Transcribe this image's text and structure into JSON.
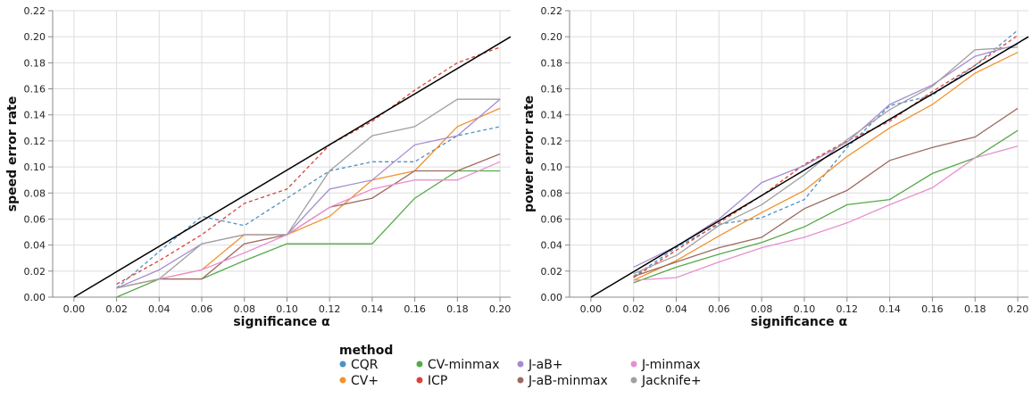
{
  "chart_data": [
    {
      "type": "line",
      "xlabel": "significance α",
      "ylabel": "speed error rate",
      "xlim": [
        -0.01,
        0.205
      ],
      "ylim": [
        0,
        0.22
      ],
      "xticks": [
        "0.00",
        "0.02",
        "0.04",
        "0.06",
        "0.08",
        "0.10",
        "0.12",
        "0.14",
        "0.16",
        "0.18",
        "0.20"
      ],
      "yticks": [
        "0.00",
        "0.02",
        "0.04",
        "0.06",
        "0.08",
        "0.10",
        "0.12",
        "0.14",
        "0.16",
        "0.18",
        "0.20",
        "0.22"
      ],
      "grid": true,
      "x": [
        0.02,
        0.04,
        0.06,
        0.08,
        0.1,
        0.12,
        0.14,
        0.16,
        0.18,
        0.2
      ],
      "reference_line": {
        "from": [
          0,
          0
        ],
        "to": [
          0.205,
          0.2
        ],
        "color": "#000000"
      },
      "series": [
        {
          "name": "CQR",
          "values": [
            0.007,
            0.035,
            0.062,
            0.055,
            0.076,
            0.097,
            0.104,
            0.104,
            0.124,
            0.131
          ]
        },
        {
          "name": "CV+",
          "values": [
            0.007,
            0.014,
            0.021,
            0.048,
            0.048,
            0.062,
            0.09,
            0.097,
            0.131,
            0.145
          ]
        },
        {
          "name": "CV-minmax",
          "values": [
            0.0,
            0.014,
            0.014,
            0.028,
            0.041,
            0.041,
            0.041,
            0.076,
            0.097,
            0.097
          ]
        },
        {
          "name": "ICP",
          "values": [
            0.01,
            0.028,
            0.048,
            0.072,
            0.083,
            0.117,
            0.135,
            0.159,
            0.18,
            0.192
          ]
        },
        {
          "name": "J-aB+",
          "values": [
            0.007,
            0.021,
            0.041,
            0.048,
            0.048,
            0.083,
            0.09,
            0.117,
            0.124,
            0.152
          ]
        },
        {
          "name": "J-aB-minmax",
          "values": [
            0.007,
            0.014,
            0.014,
            0.041,
            0.048,
            0.069,
            0.076,
            0.097,
            0.097,
            0.11
          ]
        },
        {
          "name": "J-minmax",
          "values": [
            0.007,
            0.014,
            0.021,
            0.034,
            0.048,
            0.069,
            0.083,
            0.09,
            0.09,
            0.104
          ]
        },
        {
          "name": "Jacknife+",
          "values": [
            0.007,
            0.014,
            0.041,
            0.048,
            0.048,
            0.097,
            0.124,
            0.131,
            0.152,
            0.152
          ]
        }
      ]
    },
    {
      "type": "line",
      "xlabel": "significance α",
      "ylabel": "power error rate",
      "xlim": [
        -0.01,
        0.205
      ],
      "ylim": [
        0,
        0.22
      ],
      "xticks": [
        "0.00",
        "0.02",
        "0.04",
        "0.06",
        "0.08",
        "0.10",
        "0.12",
        "0.14",
        "0.16",
        "0.18",
        "0.20"
      ],
      "yticks": [
        "0.00",
        "0.02",
        "0.04",
        "0.06",
        "0.08",
        "0.10",
        "0.12",
        "0.14",
        "0.16",
        "0.18",
        "0.20",
        "0.22"
      ],
      "grid": true,
      "x": [
        0.02,
        0.04,
        0.06,
        0.08,
        0.1,
        0.12,
        0.14,
        0.16,
        0.18,
        0.2
      ],
      "reference_line": {
        "from": [
          0,
          0
        ],
        "to": [
          0.205,
          0.2
        ],
        "color": "#000000"
      },
      "series": [
        {
          "name": "CQR",
          "values": [
            0.016,
            0.038,
            0.056,
            0.061,
            0.075,
            0.115,
            0.147,
            0.155,
            0.178,
            0.205
          ]
        },
        {
          "name": "CV+",
          "values": [
            0.013,
            0.028,
            0.047,
            0.065,
            0.082,
            0.108,
            0.13,
            0.148,
            0.172,
            0.188
          ]
        },
        {
          "name": "CV-minmax",
          "values": [
            0.011,
            0.023,
            0.033,
            0.042,
            0.054,
            0.071,
            0.075,
            0.095,
            0.107,
            0.128
          ]
        },
        {
          "name": "ICP",
          "values": [
            0.015,
            0.036,
            0.057,
            0.078,
            0.102,
            0.12,
            0.135,
            0.158,
            0.178,
            0.201
          ]
        },
        {
          "name": "J-aB+",
          "values": [
            0.023,
            0.039,
            0.06,
            0.088,
            0.101,
            0.119,
            0.148,
            0.163,
            0.185,
            0.194
          ]
        },
        {
          "name": "J-aB-minmax",
          "values": [
            0.016,
            0.027,
            0.038,
            0.046,
            0.068,
            0.082,
            0.105,
            0.115,
            0.123,
            0.145
          ]
        },
        {
          "name": "J-minmax",
          "values": [
            0.013,
            0.015,
            0.027,
            0.038,
            0.046,
            0.057,
            0.071,
            0.084,
            0.107,
            0.116
          ]
        },
        {
          "name": "Jacknife+",
          "values": [
            0.018,
            0.032,
            0.055,
            0.071,
            0.094,
            0.121,
            0.144,
            0.162,
            0.19,
            0.192
          ]
        }
      ]
    }
  ],
  "legend": {
    "title": "method",
    "placement": "bottom-center",
    "items": [
      {
        "name": "CQR",
        "color": "#4c92c3",
        "dash": true
      },
      {
        "name": "CV+",
        "color": "#f2922e",
        "dash": false
      },
      {
        "name": "CV-minmax",
        "color": "#55aa48",
        "dash": false
      },
      {
        "name": "ICP",
        "color": "#d9423a",
        "dash": true
      },
      {
        "name": "J-aB+",
        "color": "#a78bd0",
        "dash": false
      },
      {
        "name": "J-aB-minmax",
        "color": "#9c6b5f",
        "dash": false
      },
      {
        "name": "J-minmax",
        "color": "#e88fcf",
        "dash": false
      },
      {
        "name": "Jacknife+",
        "color": "#a0a0a0",
        "dash": false
      }
    ]
  }
}
